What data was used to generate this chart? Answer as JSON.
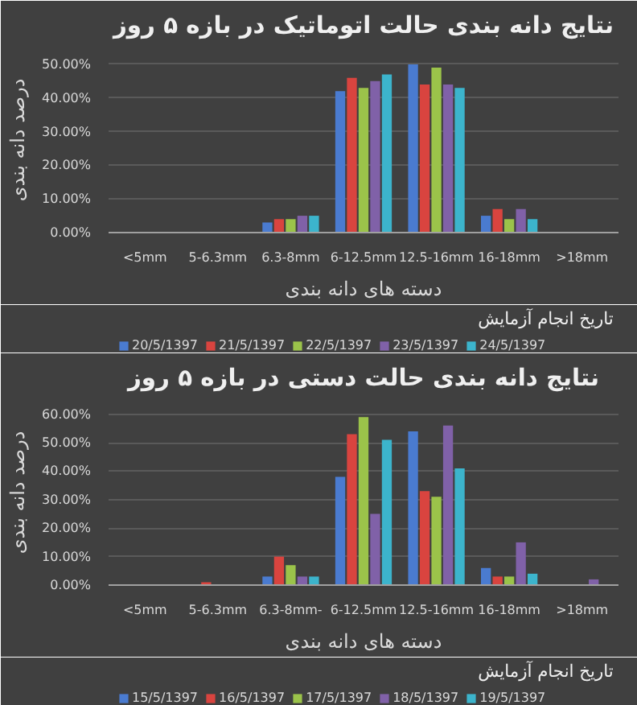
{
  "chart_data": [
    {
      "type": "bar",
      "title": "نتایج دانه بندی حالت اتوماتیک در بازه ۵ روز",
      "xlabel": "دسته های دانه بندی",
      "ylabel": "درصد دانه بندی",
      "legend_title": "تاریخ انجام آزمایش",
      "categories": [
        "<5mm",
        "5-6.3mm",
        "6.3-8mm",
        "6-12.5mm",
        "12.5-16mm",
        "16-18mm",
        ">18mm"
      ],
      "ylim": [
        0,
        55
      ],
      "yticks": [
        {
          "value": 0,
          "label": "0.00%"
        },
        {
          "value": 10,
          "label": "10.00%"
        },
        {
          "value": 20,
          "label": "20.00%"
        },
        {
          "value": 30,
          "label": "30.00%"
        },
        {
          "value": 40,
          "label": "40.00%"
        },
        {
          "value": 50,
          "label": "50.00%"
        }
      ],
      "grid": "y",
      "legend": "bottom",
      "series": [
        {
          "name": "20/5/1397",
          "color": "#4a7bd0",
          "values": [
            0,
            0,
            3,
            42,
            50,
            5,
            0
          ]
        },
        {
          "name": "21/5/1397",
          "color": "#d9443f",
          "values": [
            0,
            0,
            4,
            46,
            44,
            7,
            0
          ]
        },
        {
          "name": "22/5/1397",
          "color": "#9bc34a",
          "values": [
            0,
            0,
            4,
            43,
            49,
            4,
            0
          ]
        },
        {
          "name": "23/5/1397",
          "color": "#8061a8",
          "values": [
            0,
            0,
            5,
            45,
            44,
            7,
            0
          ]
        },
        {
          "name": "24/5/1397",
          "color": "#3cb4cc",
          "values": [
            0,
            0,
            5,
            47,
            43,
            4,
            0
          ]
        }
      ]
    },
    {
      "type": "bar",
      "title": "نتایج دانه بندی حالت دستی در بازه ۵ روز",
      "xlabel": "دسته های دانه بندی",
      "ylabel": "درصد دانه بندی",
      "legend_title": "تاریخ انجام آزمایش",
      "categories": [
        "<5mm",
        "5-6.3mm",
        "6.3-8mm-",
        "6-12.5mm",
        "12.5-16mm",
        "16-18mm",
        ">18mm"
      ],
      "ylim": [
        0,
        65
      ],
      "yticks": [
        {
          "value": 0,
          "label": "0.00%"
        },
        {
          "value": 10,
          "label": "10.00%"
        },
        {
          "value": 20,
          "label": "20.00%"
        },
        {
          "value": 30,
          "label": "30.00%"
        },
        {
          "value": 40,
          "label": "40.00%"
        },
        {
          "value": 50,
          "label": "50.00%"
        },
        {
          "value": 60,
          "label": "60.00%"
        }
      ],
      "grid": "y",
      "legend": "bottom",
      "series": [
        {
          "name": "15/5/1397",
          "color": "#4a7bd0",
          "values": [
            0,
            0,
            3,
            38,
            54,
            6,
            0
          ]
        },
        {
          "name": "16/5/1397",
          "color": "#d9443f",
          "values": [
            0,
            1,
            10,
            53,
            33,
            3,
            0
          ]
        },
        {
          "name": "17/5/1397",
          "color": "#9bc34a",
          "values": [
            0,
            0,
            7,
            59,
            31,
            3,
            0
          ]
        },
        {
          "name": "18/5/1397",
          "color": "#8061a8",
          "values": [
            0,
            0,
            3,
            25,
            56,
            15,
            2
          ]
        },
        {
          "name": "19/5/1397",
          "color": "#3cb4cc",
          "values": [
            0,
            0,
            3,
            51,
            41,
            4,
            0
          ]
        }
      ]
    }
  ]
}
